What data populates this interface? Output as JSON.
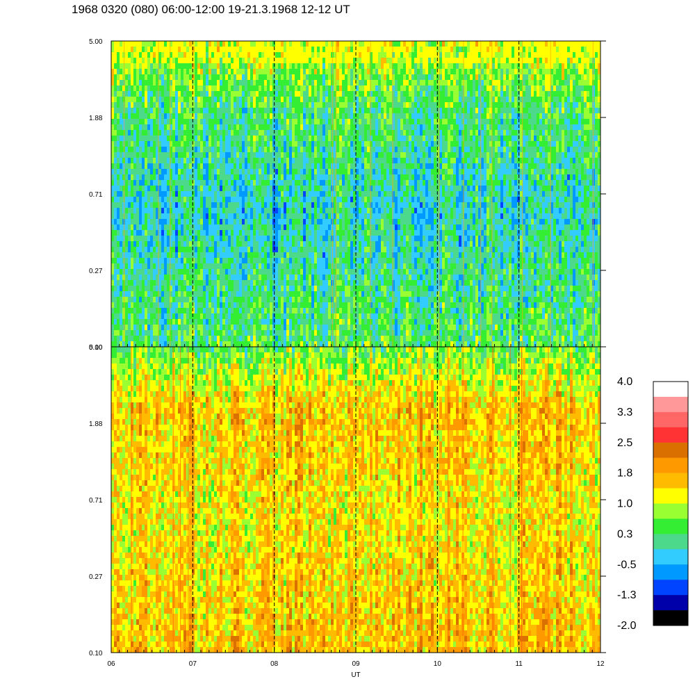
{
  "title": "1968 0320 (080) 06:00-12:00 19-21.3.1968  12-12 UT",
  "chart_data": [
    {
      "type": "heatmap",
      "panel": "upper",
      "y_ticks": [
        "5.00",
        "1.88",
        "0.71",
        "0.27",
        "0.10"
      ],
      "y_scale": "log",
      "ylim": [
        0.1,
        5.0
      ],
      "xlim": [
        6,
        12
      ],
      "x_ticks": [
        "06",
        "07",
        "08",
        "09",
        "10",
        "11",
        "12"
      ],
      "grid": "dashed vertical lines at each hour",
      "dominant_levels": {
        "top_band": 1.0,
        "upper_mid": 0.3,
        "middle": -0.2,
        "bottom": 0.3
      }
    },
    {
      "type": "heatmap",
      "panel": "lower",
      "y_ticks": [
        "5.00",
        "1.88",
        "0.71",
        "0.27",
        "0.10"
      ],
      "y_scale": "log",
      "ylim": [
        0.1,
        5.0
      ],
      "xlim": [
        6,
        12
      ],
      "x_ticks": [
        "06",
        "07",
        "08",
        "09",
        "10",
        "11",
        "12"
      ],
      "xlabel": "UT",
      "grid": "dashed vertical lines at each hour",
      "dominant_levels": {
        "top_band": 0.6,
        "upper_mid": 1.6,
        "middle": 1.3,
        "bottom": 1.6
      }
    }
  ],
  "colorbar": {
    "labels": [
      "4.0",
      "3.3",
      "2.5",
      "1.8",
      "1.0",
      "0.3",
      "-0.5",
      "-1.3",
      "-2.0"
    ],
    "colors": [
      "#ffffff",
      "#ff9999",
      "#ff6666",
      "#ff3333",
      "#d97000",
      "#ff9900",
      "#ffbb00",
      "#ffff00",
      "#99ff33",
      "#33ee33",
      "#4dd98c",
      "#33ccff",
      "#0099ff",
      "#0044ff",
      "#0000aa",
      "#000000"
    ]
  }
}
